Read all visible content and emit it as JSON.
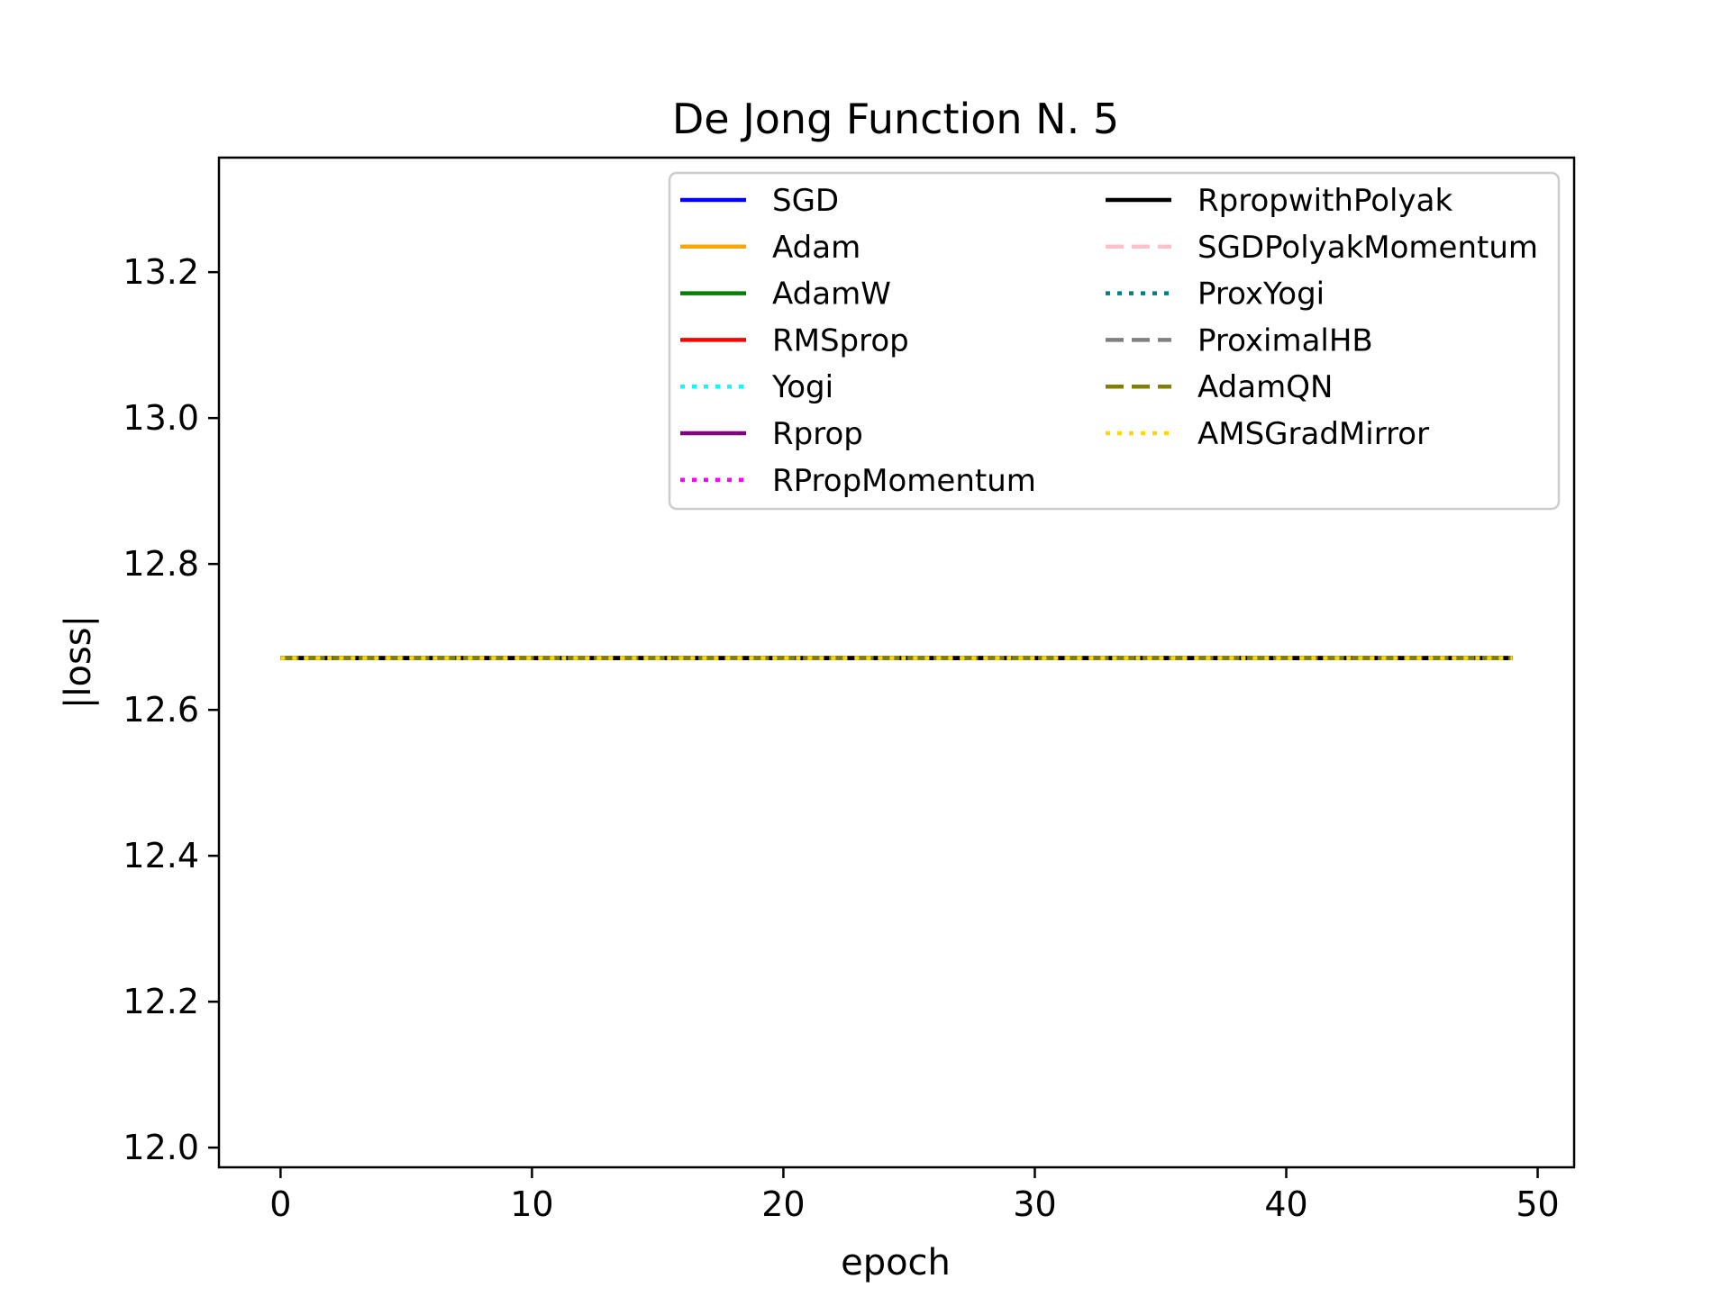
{
  "chart_data": {
    "type": "line",
    "title": "De Jong Function N. 5",
    "xlabel": "epoch",
    "ylabel": "|loss|",
    "xlim": [
      -2.45,
      51.45
    ],
    "ylim": [
      11.973,
      13.357
    ],
    "xticks": [
      0,
      10,
      20,
      30,
      40,
      50
    ],
    "yticks": [
      12.0,
      12.2,
      12.4,
      12.6,
      12.8,
      13.0,
      13.2
    ],
    "xtick_labels": [
      "0",
      "10",
      "20",
      "30",
      "40",
      "50"
    ],
    "ytick_labels": [
      "12.0",
      "12.2",
      "12.4",
      "12.6",
      "12.8",
      "13.0",
      "13.2"
    ],
    "grid": false,
    "legend_position": "top-right",
    "legend_columns": 2,
    "x": [
      0,
      49
    ],
    "series": [
      {
        "name": "SGD",
        "color": "#0000ff",
        "style": "solid",
        "values": [
          12.671,
          12.671
        ]
      },
      {
        "name": "Adam",
        "color": "#ffa500",
        "style": "solid",
        "values": [
          12.671,
          12.671
        ]
      },
      {
        "name": "AdamW",
        "color": "#008000",
        "style": "solid",
        "values": [
          12.671,
          12.671
        ]
      },
      {
        "name": "RMSprop",
        "color": "#ff0000",
        "style": "solid",
        "values": [
          12.671,
          12.671
        ]
      },
      {
        "name": "Yogi",
        "color": "#00ffff",
        "style": "dotted",
        "values": [
          12.671,
          12.671
        ]
      },
      {
        "name": "Rprop",
        "color": "#800080",
        "style": "solid",
        "values": [
          12.671,
          12.671
        ]
      },
      {
        "name": "RPropMomentum",
        "color": "#ff00ff",
        "style": "dotted",
        "values": [
          12.671,
          12.671
        ]
      },
      {
        "name": "RpropwithPolyak",
        "color": "#000000",
        "style": "solid",
        "values": [
          12.671,
          12.671
        ]
      },
      {
        "name": "SGDPolyakMomentum",
        "color": "#ffc0cb",
        "style": "dashed",
        "values": [
          12.671,
          12.671
        ]
      },
      {
        "name": "ProxYogi",
        "color": "#008080",
        "style": "dotted",
        "values": [
          12.671,
          12.671
        ]
      },
      {
        "name": "ProximalHB",
        "color": "#808080",
        "style": "dashed",
        "values": [
          12.671,
          12.671
        ]
      },
      {
        "name": "AdamQN",
        "color": "#808000",
        "style": "dashed",
        "values": [
          12.671,
          12.671
        ]
      },
      {
        "name": "AMSGradMirror",
        "color": "#ffd700",
        "style": "dotted",
        "values": [
          12.671,
          12.671
        ]
      }
    ]
  }
}
